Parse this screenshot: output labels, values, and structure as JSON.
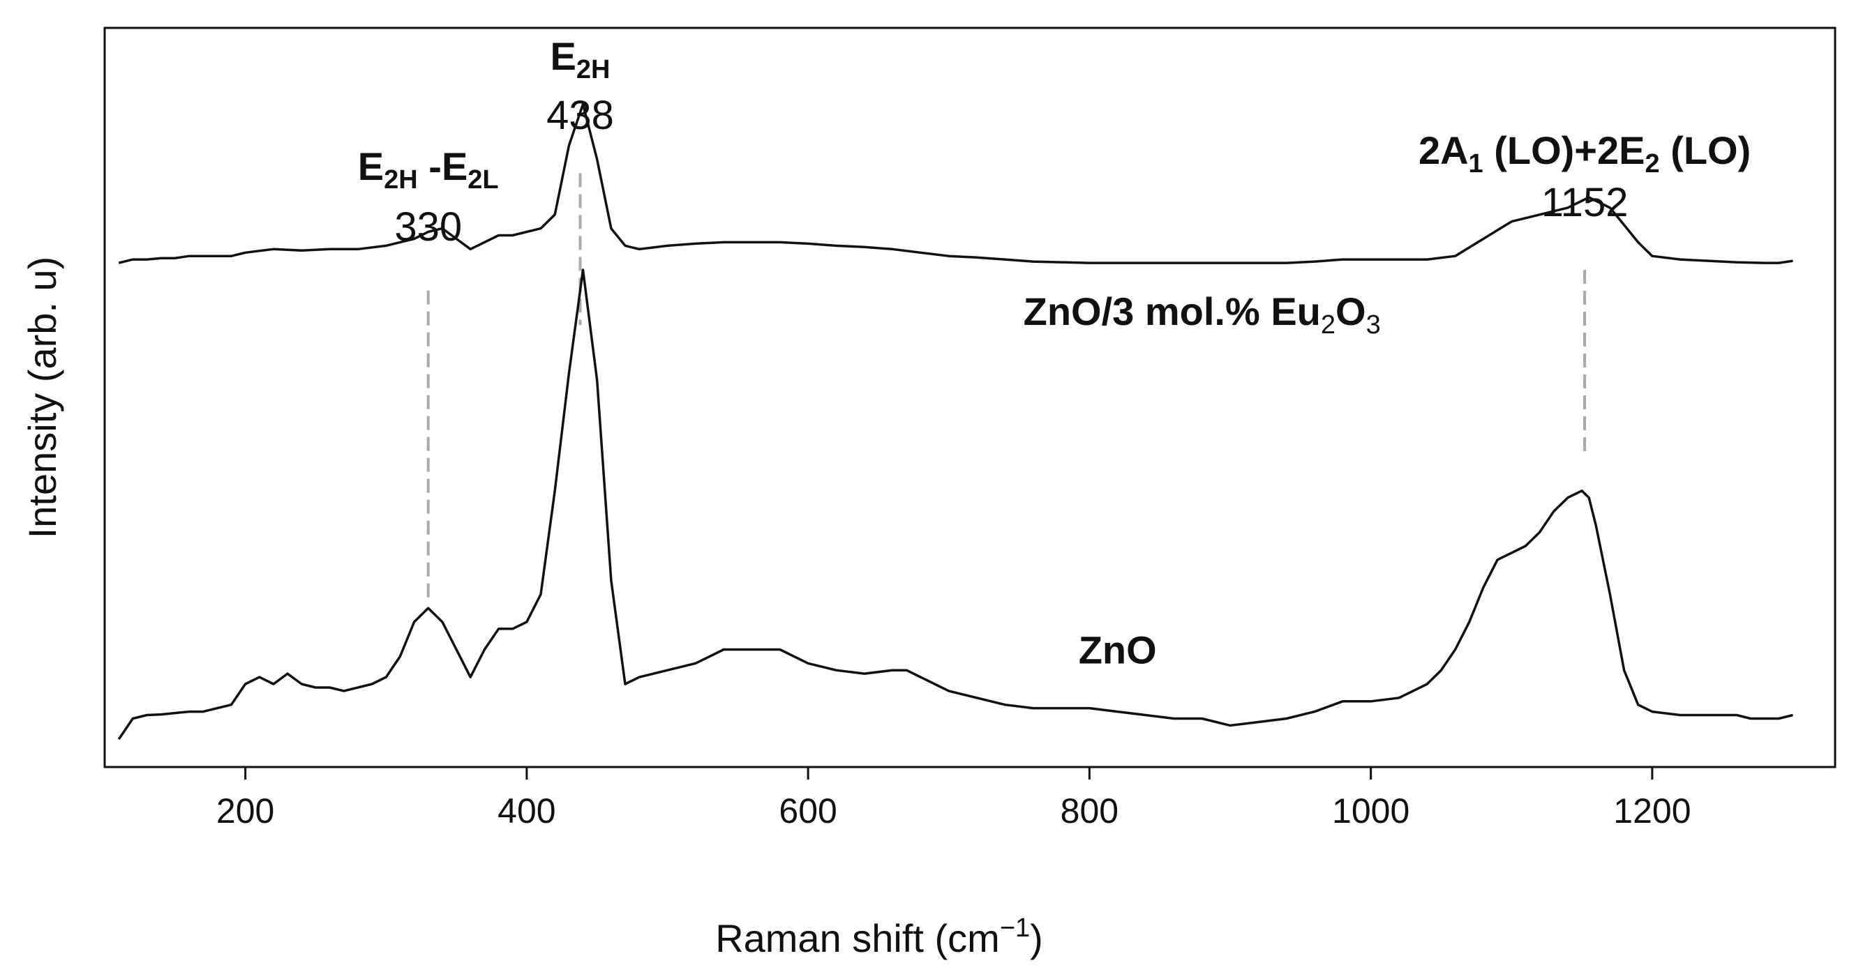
{
  "chart_data": {
    "type": "line",
    "xlabel_main": "Raman shift (cm",
    "xlabel_sup": "−1",
    "xlabel_close": ")",
    "ylabel": "Intensity (arb. u)",
    "xlim": [
      100,
      1330
    ],
    "ylim": [
      0,
      100
    ],
    "x_ticks": [
      200,
      400,
      600,
      800,
      1000,
      1200
    ],
    "series": [
      {
        "name": "ZnO",
        "x": [
          110,
          120,
          130,
          140,
          150,
          160,
          170,
          180,
          190,
          200,
          210,
          220,
          230,
          240,
          250,
          260,
          270,
          280,
          290,
          300,
          310,
          320,
          330,
          340,
          350,
          360,
          370,
          380,
          390,
          400,
          410,
          420,
          430,
          440,
          450,
          460,
          470,
          480,
          500,
          520,
          540,
          560,
          580,
          590,
          600,
          620,
          640,
          660,
          670,
          680,
          700,
          720,
          740,
          760,
          780,
          800,
          820,
          840,
          860,
          880,
          900,
          920,
          940,
          960,
          980,
          1000,
          1020,
          1040,
          1050,
          1060,
          1070,
          1080,
          1090,
          1100,
          1110,
          1120,
          1130,
          1140,
          1150,
          1155,
          1160,
          1170,
          1180,
          1190,
          1200,
          1220,
          1240,
          1260,
          1270,
          1280,
          1290,
          1300
        ],
        "y": [
          2,
          5,
          5.5,
          5.6,
          5.8,
          6,
          6,
          6.5,
          7,
          10,
          11,
          10,
          11.5,
          10,
          9.5,
          9.5,
          9,
          9.5,
          10,
          11,
          14,
          19,
          21,
          19,
          15,
          11,
          15,
          18,
          18,
          19,
          23,
          38,
          55,
          70,
          54,
          25,
          10,
          11,
          12,
          13,
          15,
          15,
          15,
          14,
          13,
          12,
          11.5,
          12,
          12,
          11,
          9,
          8,
          7,
          6.5,
          6.5,
          6.5,
          6,
          5.5,
          5,
          5,
          4,
          4.5,
          5,
          6,
          7.5,
          7.5,
          8,
          10,
          12,
          15,
          19,
          24,
          28,
          29,
          30,
          32,
          35,
          37,
          38,
          37,
          33,
          23,
          12,
          7,
          6,
          5.5,
          5.5,
          5.5,
          5,
          5,
          5,
          5.5
        ],
        "label_position": [
          820,
          13
        ]
      },
      {
        "name": "ZnO/3 mol.% Eu₂O₃",
        "x": [
          110,
          120,
          130,
          140,
          150,
          160,
          170,
          180,
          190,
          200,
          220,
          240,
          260,
          280,
          300,
          310,
          320,
          330,
          340,
          350,
          360,
          370,
          380,
          390,
          400,
          410,
          420,
          430,
          440,
          450,
          460,
          470,
          480,
          500,
          520,
          540,
          560,
          580,
          600,
          620,
          640,
          660,
          680,
          700,
          720,
          740,
          760,
          780,
          800,
          820,
          840,
          860,
          880,
          900,
          920,
          940,
          960,
          980,
          1000,
          1020,
          1040,
          1060,
          1080,
          1100,
          1120,
          1140,
          1150,
          1155,
          1160,
          1170,
          1180,
          1190,
          1200,
          1220,
          1240,
          1260,
          1280,
          1290,
          1300
        ],
        "y": [
          71,
          71.5,
          71.5,
          71.7,
          71.7,
          72,
          72,
          72,
          72,
          72.5,
          73,
          72.8,
          73,
          73,
          73.5,
          74,
          74.5,
          75.5,
          76,
          74.5,
          73,
          74,
          75,
          75,
          75.5,
          76,
          78,
          88,
          94,
          86,
          76,
          73.5,
          73,
          73.5,
          73.8,
          74,
          74,
          74,
          73.8,
          73.5,
          73.3,
          73,
          72.5,
          72,
          71.8,
          71.5,
          71.2,
          71.1,
          71,
          71,
          71,
          71,
          71,
          71,
          71,
          71,
          71.2,
          71.5,
          71.5,
          71.5,
          71.5,
          72,
          74.5,
          77,
          78,
          79,
          80,
          80.5,
          80,
          79,
          76.5,
          74,
          72,
          71.5,
          71.3,
          71.1,
          71,
          71,
          71.3
        ],
        "label_position": [
          880,
          62
        ]
      }
    ],
    "annotations": [
      {
        "x": 330,
        "label_number": "330",
        "label_main": "E",
        "label_sub": "2H",
        "label_mid": " -E",
        "label_sub2": "2L",
        "dash_top": 67,
        "dash_bottom": 22
      },
      {
        "x": 438,
        "label_number": "438",
        "label_main": "E",
        "label_sub": "2H",
        "dash_top": 84,
        "dash_bottom": 62
      },
      {
        "x": 1152,
        "label_number": "1152",
        "label_main": "2A",
        "label_sub": "1",
        "label_mid": " (LO)+2E",
        "label_sub2": "2",
        "label_end": " (LO)",
        "dash_top": 70,
        "dash_bottom": 43
      }
    ],
    "grid": false
  }
}
